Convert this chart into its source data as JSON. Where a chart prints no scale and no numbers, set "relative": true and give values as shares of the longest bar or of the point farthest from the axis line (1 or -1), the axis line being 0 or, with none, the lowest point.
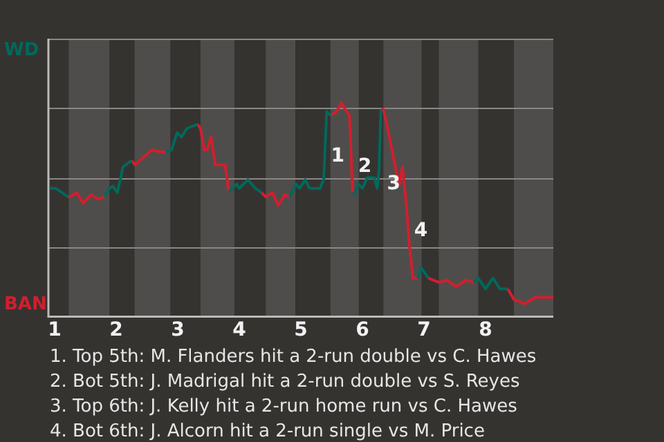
{
  "chart_data": {
    "type": "line",
    "relative": true,
    "x": [
      0.92,
      1.02,
      1.22,
      1.25,
      1.36,
      1.46,
      1.59,
      1.71,
      1.81,
      1.89,
      1.95,
      2.02,
      2.11,
      2.25,
      2.31,
      2.58,
      2.72,
      2.81,
      2.9,
      2.99,
      3.06,
      3.15,
      3.32,
      3.37,
      3.43,
      3.48,
      3.54,
      3.61,
      3.77,
      3.83,
      3.89,
      3.96,
      4.0,
      4.14,
      4.26,
      4.36,
      4.43,
      4.54,
      4.63,
      4.74,
      4.82,
      4.92,
      4.98,
      5.07,
      5.14,
      5.31,
      5.37,
      5.42,
      5.48,
      5.58,
      5.66,
      5.72,
      5.79,
      5.84,
      5.87,
      5.93,
      6.0,
      6.08,
      6.19,
      6.24,
      6.27,
      6.3,
      6.34,
      6.41,
      6.54,
      6.6,
      6.65,
      6.71,
      6.76,
      6.82,
      6.9,
      6.95,
      7.07,
      7.24,
      7.38,
      7.52,
      7.68,
      7.81,
      7.88,
      8.0,
      8.12,
      8.23,
      8.36,
      8.46,
      8.64,
      8.8,
      9.1
    ],
    "series": [
      {
        "color": "#00695c",
        "values": [
          0.6,
          0.6,
          0.56,
          null,
          null,
          null,
          null,
          null,
          0.56,
          0.6,
          0.61,
          0.58,
          0.7,
          0.73,
          null,
          null,
          null,
          0.77,
          0.78,
          0.86,
          0.84,
          0.88,
          0.9,
          null,
          null,
          null,
          null,
          null,
          null,
          0.58,
          0.6,
          0.62,
          0.6,
          0.64,
          0.6,
          0.58,
          null,
          null,
          null,
          null,
          0.56,
          0.62,
          0.6,
          0.64,
          0.6,
          0.6,
          0.64,
          0.96,
          0.94,
          null,
          null,
          null,
          null,
          0.58,
          0.57,
          0.62,
          0.6,
          0.65,
          0.65,
          0.6,
          0.69,
          0.97,
          null,
          null,
          null,
          null,
          null,
          null,
          null,
          null,
          0.18,
          0.23,
          0.18,
          null,
          null,
          null,
          null,
          0.16,
          0.18,
          0.13,
          0.18,
          0.13,
          0.13,
          null,
          null,
          null,
          null
        ]
      },
      {
        "color": "#d11f2e",
        "values": [
          null,
          null,
          0.56,
          0.56,
          0.58,
          0.53,
          0.57,
          0.55,
          0.56,
          null,
          null,
          null,
          null,
          0.73,
          0.71,
          0.78,
          0.77,
          0.77,
          null,
          null,
          null,
          null,
          0.9,
          0.88,
          0.78,
          0.78,
          0.84,
          0.71,
          0.71,
          0.58,
          null,
          null,
          null,
          null,
          null,
          0.58,
          0.56,
          0.58,
          0.52,
          0.57,
          0.56,
          null,
          null,
          null,
          null,
          null,
          null,
          null,
          0.94,
          0.96,
          1,
          0.97,
          0.94,
          0.58,
          null,
          null,
          null,
          null,
          null,
          null,
          null,
          0.97,
          0.97,
          0.88,
          0.69,
          0.62,
          0.7,
          0.53,
          0.34,
          0.18,
          0.18,
          null,
          0.18,
          0.16,
          0.17,
          0.14,
          0.17,
          0.16,
          null,
          null,
          null,
          null,
          0.13,
          0.08,
          0.06,
          0.09,
          0.09
        ]
      }
    ],
    "xlim": [
      0.9,
      9.1
    ],
    "xticks": [
      1,
      2,
      3,
      4,
      5,
      6,
      7,
      8
    ],
    "grid": "y",
    "legend": false,
    "marker": "none",
    "line_style": "solid",
    "bands": [
      {
        "axis": "x",
        "from": 1.23,
        "to": 1.89,
        "color": "#4f4d4b"
      },
      {
        "axis": "x",
        "from": 2.3,
        "to": 2.88,
        "color": "#4f4d4b"
      },
      {
        "axis": "x",
        "from": 3.37,
        "to": 3.92,
        "color": "#4f4d4b"
      },
      {
        "axis": "x",
        "from": 4.43,
        "to": 4.91,
        "color": "#4f4d4b"
      },
      {
        "axis": "x",
        "from": 5.48,
        "to": 5.94,
        "color": "#4f4d4b"
      },
      {
        "axis": "x",
        "from": 6.34,
        "to": 6.96,
        "color": "#4f4d4b"
      },
      {
        "axis": "x",
        "from": 7.24,
        "to": 7.88,
        "color": "#4f4d4b"
      },
      {
        "axis": "x",
        "from": 8.46,
        "to": 9.1,
        "color": "#4f4d4b"
      }
    ],
    "annotations": [
      "WD",
      "BAN",
      {
        "text": "1",
        "x": 5.4,
        "y": 0.75
      },
      {
        "text": "2",
        "x": 5.84,
        "y": 0.7
      },
      {
        "text": "3",
        "x": 6.31,
        "y": 0.62
      },
      {
        "text": "4",
        "x": 6.75,
        "y": 0.4
      },
      "1. Top 5th: M. Flanders hit a 2-run double vs C. Hawes",
      "2. Bot 5th: J. Madrigal hit a 2-run double vs S. Reyes",
      "3. Top 6th: J. Kelly hit a 2-run home run vs C. Hawes",
      "4. Bot 6th: J. Alcorn hit a 2-run single vs M. Price"
    ]
  }
}
